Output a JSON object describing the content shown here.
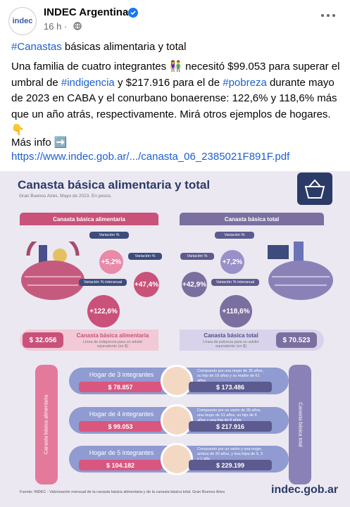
{
  "post": {
    "avatar": "indec",
    "author": "INDEC Argentina",
    "time": "16 h ·",
    "headline": {
      "hashtag": "#Canastas",
      "text": " básicas alimentaria y total"
    },
    "body": [
      "Una familia de cuatro integrantes 👫 necesitó $99.053 para superar el umbral de ",
      "#indigencia",
      " y $217.916 para el de ",
      "#pobreza",
      " durante mayo de 2023 en CABA y el conurbano bonaerense: 122,6% y 118,6% más que un año atrás, respectivamente. Mirá otros ejemplos de hogares. 👇"
    ],
    "more_info": "Más info ➡️",
    "link": "https://www.indec.gob.ar/.../canasta_06_2385021F891F.pdf"
  },
  "infographic": {
    "title": "Canasta básica alimentaria y total",
    "subtitle": "Gran Buenos Aires. Mayo de 2023. En pesos.",
    "left": {
      "header": "Canasta básica alimentaria",
      "monthly_label": "Variación %",
      "monthly": "+5,2%",
      "ytd_label": "Variación %",
      "ytd": "+47,4%",
      "yoy_label": "Variación % interanual",
      "yoy": "+122,6%",
      "amount": "$ 32.056",
      "line_title": "Canasta básica alimentaria",
      "line_desc": "Línea de indigencia para un adulto equivalente (en $)"
    },
    "right": {
      "header": "Canasta básica total",
      "monthly_label": "Variación %",
      "monthly": "+7,2%",
      "ytd_label": "Variación %",
      "ytd": "+42,9%",
      "yoy_label": "Variación % interanual",
      "yoy": "+118,6%",
      "amount": "$ 70.523",
      "line_title": "Canasta básica total",
      "line_desc": "Línea de pobreza para un adulto equivalente (en $)"
    },
    "side_left": "Canasta básica alimentaria",
    "side_right": "Canasta básica total",
    "households": [
      {
        "label": "Hogar de 3 integrantes",
        "desc": "Compuesto por una mujer de 35 años, su hijo de 18 años y su madre de 61 años",
        "cba": "$ 78.857",
        "cbt": "$ 173.486"
      },
      {
        "label": "Hogar de 4 integrantes",
        "desc": "Compuesto por un varón de 35 años, una mujer de 31 años, un hijo de 6 años y una hija de 8 años",
        "cba": "$ 99.053",
        "cbt": "$ 217.916"
      },
      {
        "label": "Hogar de 5 integrantes",
        "desc": "Compuesto por un varón y una mujer, ambos de 30 años, y tres hijos de 5, 3 y 1 año",
        "cba": "$ 104.182",
        "cbt": "$ 229.199"
      }
    ],
    "source": "Fuente: INDEC - Valorización mensual de la canasta básica alimentaria y de la canasta básica total. Gran Buenos Aires",
    "logo": "indec.gob.ar"
  }
}
